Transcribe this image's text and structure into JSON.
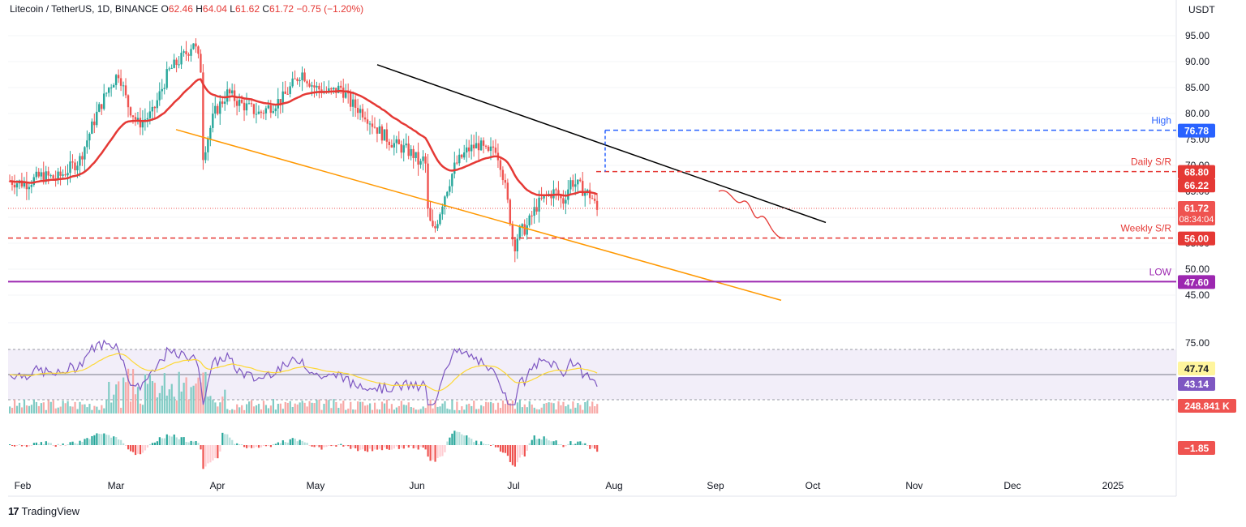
{
  "header": {
    "symbol": "Litecoin / TetherUS, 1D, BINANCE",
    "o_label": "O",
    "o": "62.46",
    "h_label": "H",
    "h": "64.04",
    "l_label": "L",
    "l": "61.62",
    "c_label": "C",
    "c": "61.72",
    "change": "−0.75 (−1.20%)"
  },
  "brand": {
    "logo": "17",
    "name": "TradingView"
  },
  "chart_data": {
    "type": "candlestick",
    "currency": "USDT",
    "price_ticks": [
      "95.00",
      "90.00",
      "85.00",
      "80.00",
      "75.00",
      "70.00",
      "65.00",
      "60.00",
      "55.00",
      "50.00",
      "45.00"
    ],
    "price_tick_values": [
      95,
      90,
      85,
      80,
      75,
      70,
      65,
      60,
      55,
      50,
      45
    ],
    "x_labels": [
      "Feb",
      "Mar",
      "Apr",
      "May",
      "Jun",
      "Jul",
      "Aug",
      "Sep",
      "Oct",
      "Nov",
      "Dec",
      "2025"
    ],
    "levels": [
      {
        "label": "High",
        "value": "76.78",
        "color": "#2962ff",
        "style": "dashed"
      },
      {
        "label": "Daily S/R",
        "value": "68.80",
        "color": "#e53935",
        "style": "dashed"
      },
      {
        "label": "Weekly S/R",
        "value": "56.00",
        "color": "#e53935",
        "style": "dashed"
      },
      {
        "label": "LOW",
        "value": "47.60",
        "color": "#9c27b0",
        "style": "solid"
      }
    ],
    "ema_value": "66.22",
    "last_price": "61.72",
    "countdown": "08:34:04",
    "rsi": {
      "value": "43.14",
      "ma": "47.74",
      "upper": "75.00"
    },
    "volume": "248.841 K",
    "macd_hist": "−1.85",
    "colors": {
      "up": "#26a69a",
      "down": "#ef5350",
      "ema": "#e53935",
      "trend": "#000000",
      "channel": "#ff9800",
      "rsi": "#7e57c2",
      "rsi_ma": "#fdd835"
    }
  }
}
